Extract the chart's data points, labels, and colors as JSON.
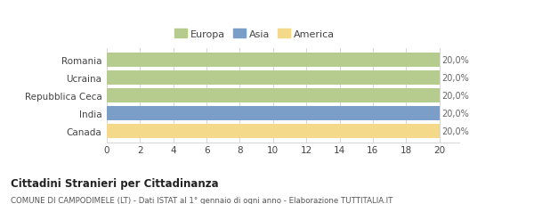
{
  "categories": [
    "Romania",
    "Ucraina",
    "Repubblica Ceca",
    "India",
    "Canada"
  ],
  "values": [
    20,
    20,
    20,
    20,
    20
  ],
  "bar_colors": [
    "#b5cc8e",
    "#b5cc8e",
    "#b5cc8e",
    "#7b9ec9",
    "#f5d98b"
  ],
  "bar_labels": [
    "20,0%",
    "20,0%",
    "20,0%",
    "20,0%",
    "20,0%"
  ],
  "legend_labels": [
    "Europa",
    "Asia",
    "America"
  ],
  "legend_colors": [
    "#b5cc8e",
    "#7b9ec9",
    "#f5d98b"
  ],
  "xlim": [
    0,
    20
  ],
  "xticks": [
    0,
    2,
    4,
    6,
    8,
    10,
    12,
    14,
    16,
    18,
    20
  ],
  "title_bold": "Cittadini Stranieri per Cittadinanza",
  "subtitle": "COMUNE DI CAMPODIMELE (LT) - Dati ISTAT al 1° gennaio di ogni anno - Elaborazione TUTTITALIA.IT",
  "grid_color": "#d0d0d0",
  "background_color": "#ffffff",
  "bar_height": 0.82
}
